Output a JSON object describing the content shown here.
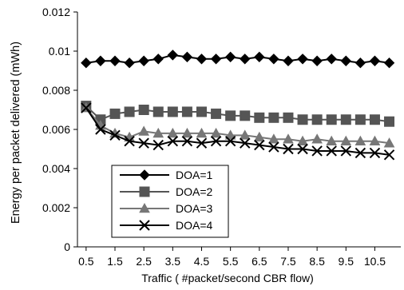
{
  "chart_data": {
    "type": "line",
    "xlabel": "Traffic ( #packet/second CBR flow)",
    "ylabel": "Energy per packet delivered (mWh)",
    "ylim": [
      0,
      0.012
    ],
    "xlim": [
      0.5,
      11.0
    ],
    "yticks": [
      "0",
      "0.002",
      "0.004",
      "0.006",
      "0.008",
      "0.01",
      "0.012"
    ],
    "xticks": [
      "0.5",
      "1.5",
      "2.5",
      "3.5",
      "4.5",
      "5.5",
      "6.5",
      "7.5",
      "8.5",
      "9.5",
      "10.5"
    ],
    "legend_position": "lower-left",
    "x": [
      0.5,
      1.0,
      1.5,
      2.0,
      2.5,
      3.0,
      3.5,
      4.0,
      4.5,
      5.0,
      5.5,
      6.0,
      6.5,
      7.0,
      7.5,
      8.0,
      8.5,
      9.0,
      9.5,
      10.0,
      10.5,
      11.0
    ],
    "series": [
      {
        "name": "DOA=1",
        "marker": "diamond",
        "color": "#000000",
        "values": [
          0.0094,
          0.0095,
          0.0095,
          0.0094,
          0.0095,
          0.0096,
          0.0098,
          0.0097,
          0.0096,
          0.0096,
          0.0097,
          0.0096,
          0.0097,
          0.0096,
          0.0095,
          0.0096,
          0.0095,
          0.0096,
          0.0095,
          0.0094,
          0.0095,
          0.0094
        ]
      },
      {
        "name": "DOA=2",
        "marker": "square",
        "color": "#555555",
        "values": [
          0.0072,
          0.0065,
          0.0068,
          0.0069,
          0.007,
          0.0069,
          0.0069,
          0.0069,
          0.0069,
          0.0068,
          0.0067,
          0.0067,
          0.0066,
          0.0066,
          0.0066,
          0.0065,
          0.0065,
          0.0065,
          0.0065,
          0.0065,
          0.0065,
          0.0064
        ]
      },
      {
        "name": "DOA=3",
        "marker": "triangle",
        "color": "#777777",
        "values": [
          0.0071,
          0.0062,
          0.0058,
          0.0056,
          0.0059,
          0.0058,
          0.0058,
          0.0058,
          0.0058,
          0.0058,
          0.0057,
          0.0057,
          0.0056,
          0.0055,
          0.0055,
          0.0054,
          0.0055,
          0.0054,
          0.0054,
          0.0054,
          0.0054,
          0.0053
        ]
      },
      {
        "name": "DOA=4",
        "marker": "x",
        "color": "#000000",
        "values": [
          0.0071,
          0.006,
          0.0057,
          0.0054,
          0.0053,
          0.0052,
          0.0054,
          0.0054,
          0.0053,
          0.0054,
          0.0054,
          0.0053,
          0.0052,
          0.0051,
          0.005,
          0.005,
          0.0049,
          0.0049,
          0.0049,
          0.0048,
          0.0048,
          0.0047
        ]
      }
    ]
  }
}
